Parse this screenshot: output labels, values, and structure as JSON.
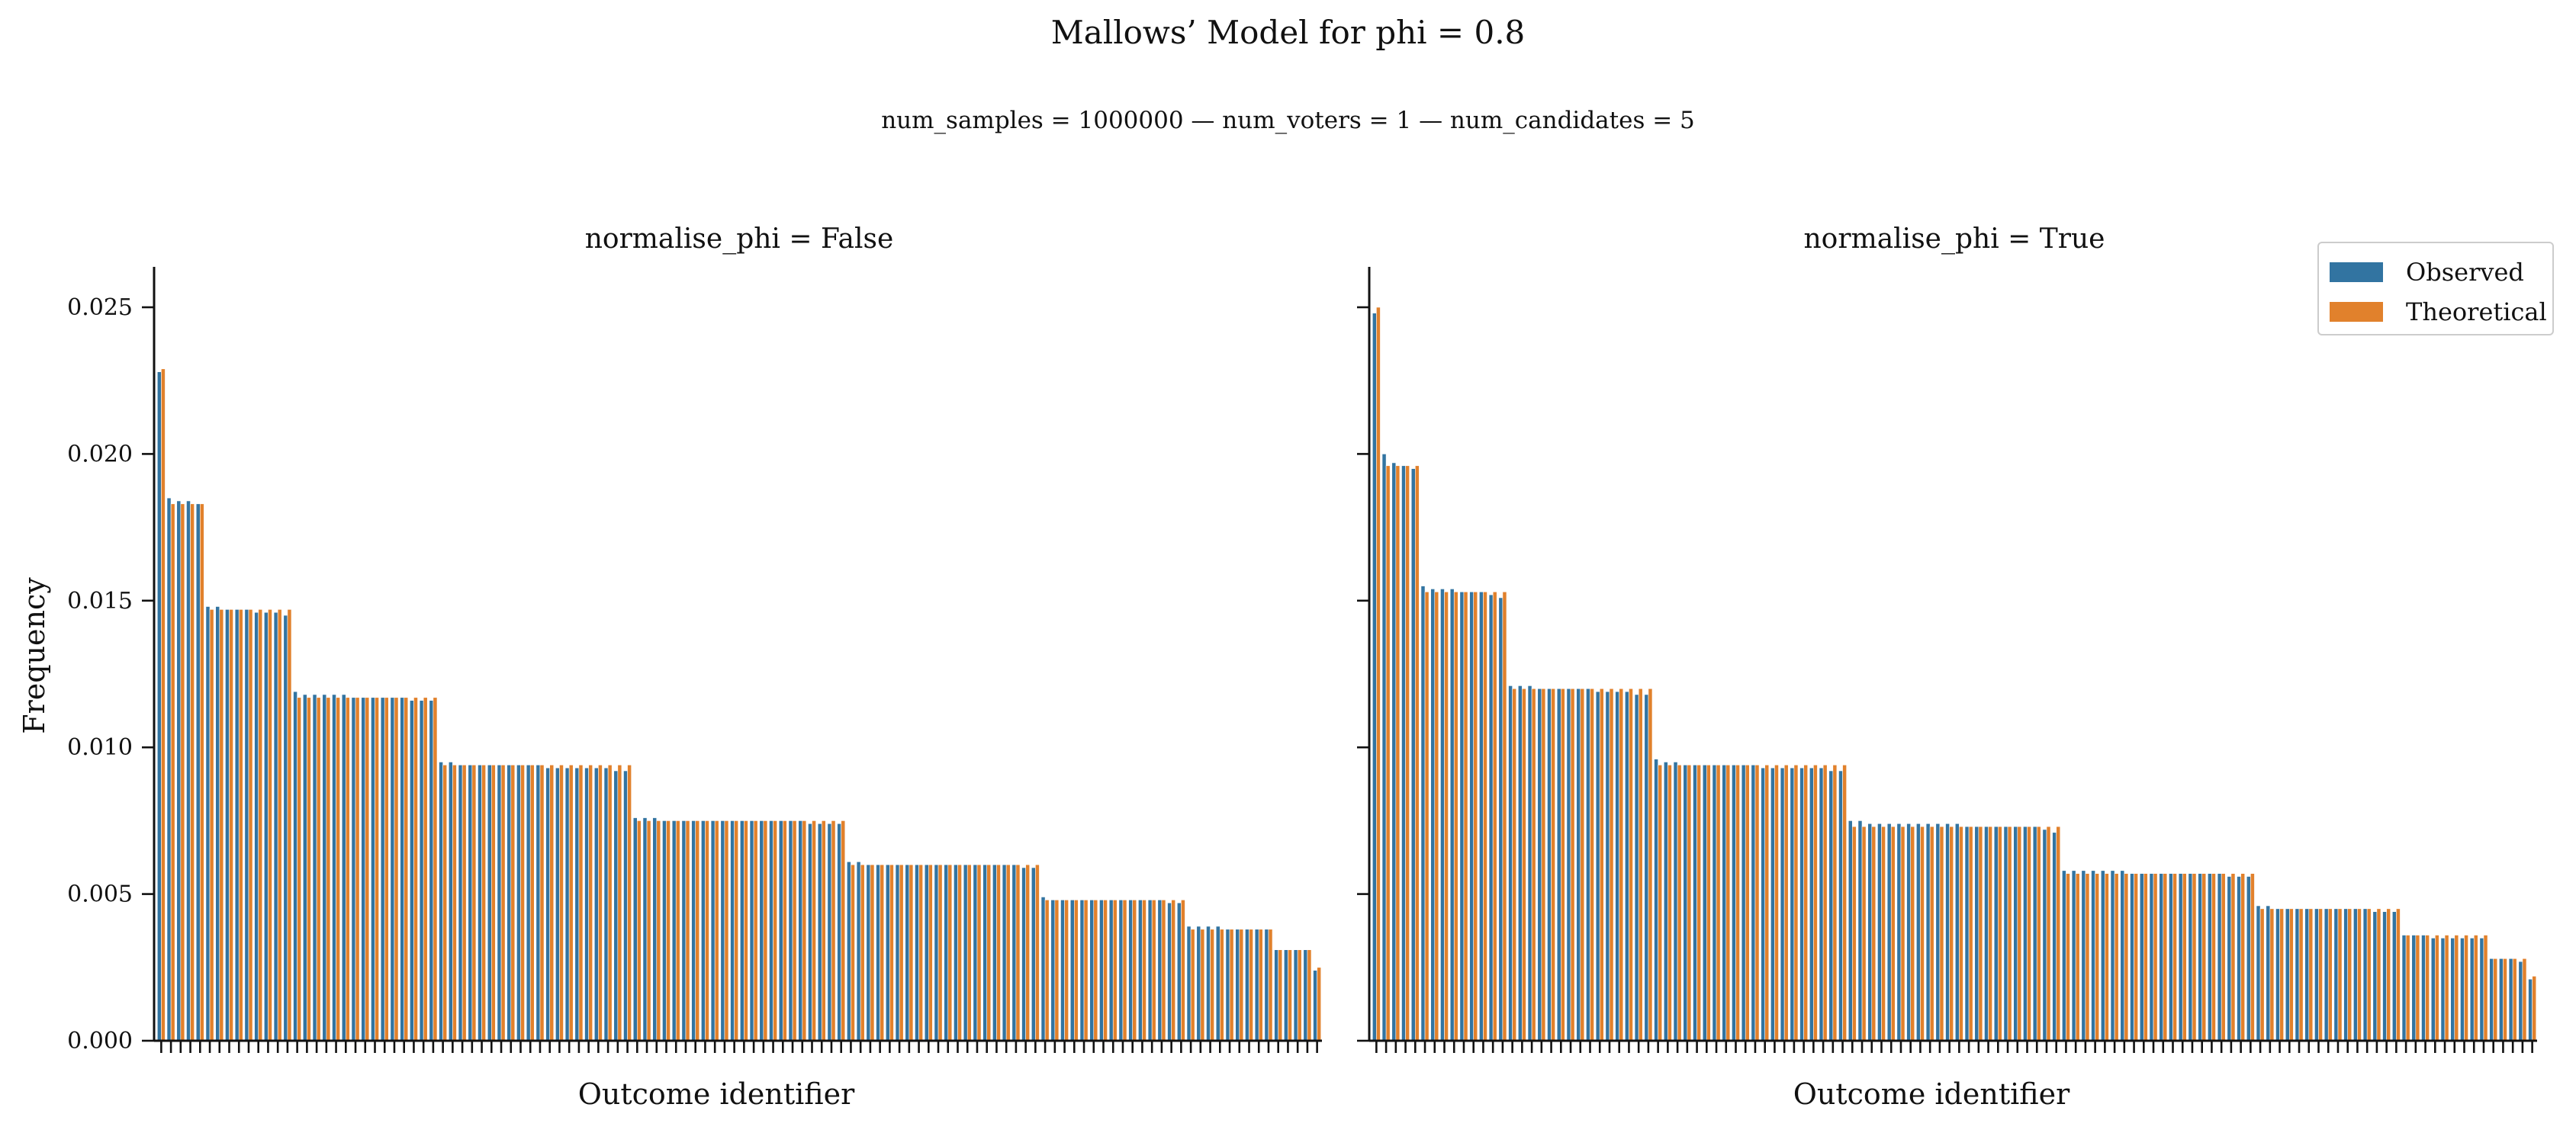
{
  "chart_data": {
    "type": "bar",
    "title": "Mallows’ Model for phi = 0.8",
    "subtitle": "num_samples = 1000000   —   num_voters = 1   —   num_candidates = 5",
    "ylabel": "Frequency",
    "xlabel": "Outcome identifier",
    "ylim": [
      0,
      0.025
    ],
    "yticks": [
      "0.000",
      "0.005",
      "0.010",
      "0.015",
      "0.020",
      "0.025"
    ],
    "legend_position": "top-right",
    "series_names": [
      "Observed",
      "Theoretical"
    ],
    "colors": {
      "Observed": "#3274a1",
      "Theoretical": "#e1812c",
      "bar_edge": "#ffffff"
    },
    "panels": [
      {
        "title": "normalise_phi = False",
        "levels": [
          {
            "count": 1,
            "obs": [
              0.0228
            ],
            "theo": 0.0229
          },
          {
            "count": 4,
            "obs": [
              0.0185,
              0.0184,
              0.0184,
              0.0183
            ],
            "theo": 0.0183
          },
          {
            "count": 9,
            "obs": [
              0.0148,
              0.0148,
              0.0147,
              0.0147,
              0.0147,
              0.0146,
              0.0146,
              0.0146,
              0.0145
            ],
            "theo": 0.0147
          },
          {
            "count": 15,
            "obs": [
              0.0119,
              0.0118,
              0.0118,
              0.0118,
              0.0118,
              0.0118,
              0.0117,
              0.0117,
              0.0117,
              0.0117,
              0.0117,
              0.0117,
              0.0116,
              0.0116,
              0.0116
            ],
            "theo": 0.0117
          },
          {
            "count": 20,
            "obs": [
              0.0095,
              0.0095,
              0.0094,
              0.0094,
              0.0094,
              0.0094,
              0.0094,
              0.0094,
              0.0094,
              0.0094,
              0.0094,
              0.0093,
              0.0093,
              0.0093,
              0.0093,
              0.0093,
              0.0093,
              0.0093,
              0.0092,
              0.0092
            ],
            "theo": 0.0094
          },
          {
            "count": 22,
            "obs": [
              0.0076,
              0.0076,
              0.0076,
              0.0075,
              0.0075,
              0.0075,
              0.0075,
              0.0075,
              0.0075,
              0.0075,
              0.0075,
              0.0075,
              0.0075,
              0.0075,
              0.0075,
              0.0075,
              0.0075,
              0.0075,
              0.0074,
              0.0074,
              0.0074,
              0.0074
            ],
            "theo": 0.0075
          },
          {
            "count": 20,
            "obs": [
              0.0061,
              0.0061,
              0.006,
              0.006,
              0.006,
              0.006,
              0.006,
              0.006,
              0.006,
              0.006,
              0.006,
              0.006,
              0.006,
              0.006,
              0.006,
              0.006,
              0.006,
              0.006,
              0.0059,
              0.0059
            ],
            "theo": 0.006
          },
          {
            "count": 15,
            "obs": [
              0.0049,
              0.0048,
              0.0048,
              0.0048,
              0.0048,
              0.0048,
              0.0048,
              0.0048,
              0.0048,
              0.0048,
              0.0048,
              0.0048,
              0.0048,
              0.0047,
              0.0047
            ],
            "theo": 0.0048
          },
          {
            "count": 9,
            "obs": [
              0.0039,
              0.0039,
              0.0039,
              0.0039,
              0.0038,
              0.0038,
              0.0038,
              0.0038,
              0.0038
            ],
            "theo": 0.0038
          },
          {
            "count": 4,
            "obs": [
              0.0031,
              0.0031,
              0.0031,
              0.0031
            ],
            "theo": 0.0031
          },
          {
            "count": 1,
            "obs": [
              0.0024
            ],
            "theo": 0.0025
          }
        ]
      },
      {
        "title": "normalise_phi = True",
        "levels": [
          {
            "count": 1,
            "obs": [
              0.0248
            ],
            "theo": 0.025
          },
          {
            "count": 4,
            "obs": [
              0.02,
              0.0197,
              0.0196,
              0.0195
            ],
            "theo": 0.0196
          },
          {
            "count": 9,
            "obs": [
              0.0155,
              0.0154,
              0.0154,
              0.0154,
              0.0153,
              0.0153,
              0.0153,
              0.0152,
              0.0151
            ],
            "theo": 0.0153
          },
          {
            "count": 15,
            "obs": [
              0.0121,
              0.0121,
              0.0121,
              0.012,
              0.012,
              0.012,
              0.012,
              0.012,
              0.012,
              0.0119,
              0.0119,
              0.0119,
              0.0119,
              0.0118,
              0.0118
            ],
            "theo": 0.012
          },
          {
            "count": 20,
            "obs": [
              0.0096,
              0.0095,
              0.0095,
              0.0094,
              0.0094,
              0.0094,
              0.0094,
              0.0094,
              0.0094,
              0.0094,
              0.0094,
              0.0093,
              0.0093,
              0.0093,
              0.0093,
              0.0093,
              0.0093,
              0.0093,
              0.0092,
              0.0092
            ],
            "theo": 0.0094
          },
          {
            "count": 22,
            "obs": [
              0.0075,
              0.0075,
              0.0074,
              0.0074,
              0.0074,
              0.0074,
              0.0074,
              0.0074,
              0.0074,
              0.0074,
              0.0074,
              0.0074,
              0.0073,
              0.0073,
              0.0073,
              0.0073,
              0.0073,
              0.0073,
              0.0073,
              0.0073,
              0.0072,
              0.0071
            ],
            "theo": 0.0073
          },
          {
            "count": 20,
            "obs": [
              0.0058,
              0.0058,
              0.0058,
              0.0058,
              0.0058,
              0.0058,
              0.0058,
              0.0057,
              0.0057,
              0.0057,
              0.0057,
              0.0057,
              0.0057,
              0.0057,
              0.0057,
              0.0057,
              0.0057,
              0.0056,
              0.0056,
              0.0056
            ],
            "theo": 0.0057
          },
          {
            "count": 15,
            "obs": [
              0.0046,
              0.0046,
              0.0045,
              0.0045,
              0.0045,
              0.0045,
              0.0045,
              0.0045,
              0.0045,
              0.0045,
              0.0045,
              0.0045,
              0.0044,
              0.0044,
              0.0044
            ],
            "theo": 0.0045
          },
          {
            "count": 9,
            "obs": [
              0.0036,
              0.0036,
              0.0036,
              0.0035,
              0.0035,
              0.0035,
              0.0035,
              0.0035,
              0.0035
            ],
            "theo": 0.0036
          },
          {
            "count": 4,
            "obs": [
              0.0028,
              0.0028,
              0.0028,
              0.0027
            ],
            "theo": 0.0028
          },
          {
            "count": 1,
            "obs": [
              0.0021
            ],
            "theo": 0.0022
          }
        ]
      }
    ]
  }
}
